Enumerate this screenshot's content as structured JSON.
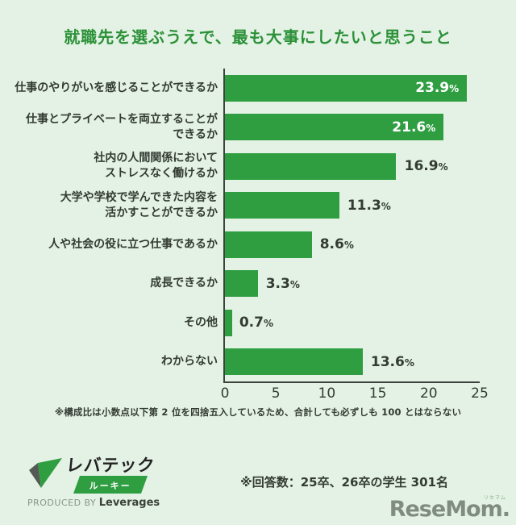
{
  "title": "就職先を選ぶうえで、最も大事にしたいと思うこと",
  "chart_data": {
    "type": "bar",
    "orientation": "horizontal",
    "title": "就職先を選ぶうえで、最も大事にしたいと思うこと",
    "categories": [
      "仕事のやりがいを感じることができるか",
      "仕事とプライベートを両立することが\nできるか",
      "社内の人間関係において\nストレスなく働けるか",
      "大学や学校で学んできた内容を\n活かすことができるか",
      "人や社会の役に立つ仕事であるか",
      "成長できるか",
      "その他",
      "わからない"
    ],
    "values": [
      23.9,
      21.6,
      16.9,
      11.3,
      8.6,
      3.3,
      0.7,
      13.6
    ],
    "unit": "%",
    "label_placement": [
      "inside",
      "inside",
      "outside",
      "outside",
      "outside",
      "outside",
      "outside",
      "outside"
    ],
    "xticks": [
      "0",
      "5",
      "10",
      "15",
      "20",
      "25"
    ],
    "xlim": [
      0,
      25
    ],
    "grid": false,
    "legend": null,
    "bar_color": "#2f9e41"
  },
  "notes": {
    "rounding": "※構成比は小数点以下第 2 位を四捨五入しているため、合計しても必ずしも 100 とはならない",
    "respondents": "※回答数：25卒、26卒の学生 301名"
  },
  "footer": {
    "brand_name": "レバテック",
    "brand_sub": "ルーキー",
    "produced_by": "PRODUCED BY",
    "company": "Leverages",
    "media_logo": "ReseMom.",
    "media_logo_ruby": "リセマム"
  },
  "colors": {
    "background": "#e3f2e4",
    "bar": "#2f9e41",
    "title": "#2b9138",
    "text": "#333b33"
  }
}
